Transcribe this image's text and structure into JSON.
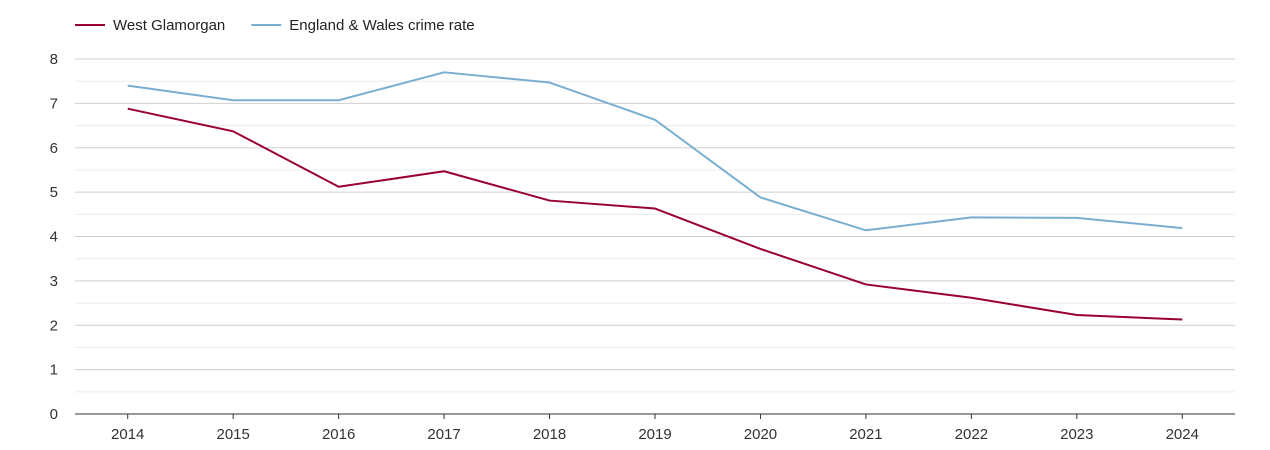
{
  "chart_data": {
    "type": "line",
    "title": "",
    "xlabel": "",
    "ylabel": "",
    "x": [
      "2014",
      "2015",
      "2016",
      "2017",
      "2018",
      "2019",
      "2020",
      "2021",
      "2022",
      "2023",
      "2024"
    ],
    "ylim": [
      0,
      8
    ],
    "yticks": [
      0,
      1,
      2,
      3,
      4,
      5,
      6,
      7,
      8
    ],
    "grid": true,
    "legend_position": "top-left",
    "series": [
      {
        "name": "West Glamorgan",
        "color": "#990033",
        "values": [
          6.88,
          6.37,
          5.12,
          5.47,
          4.81,
          4.63,
          3.72,
          2.92,
          2.62,
          2.23,
          2.13
        ]
      },
      {
        "name": "England & Wales crime rate",
        "color": "#7aaed0",
        "values": [
          7.4,
          7.07,
          7.07,
          7.7,
          7.47,
          6.63,
          4.88,
          4.14,
          4.43,
          4.42,
          4.19
        ]
      }
    ]
  }
}
